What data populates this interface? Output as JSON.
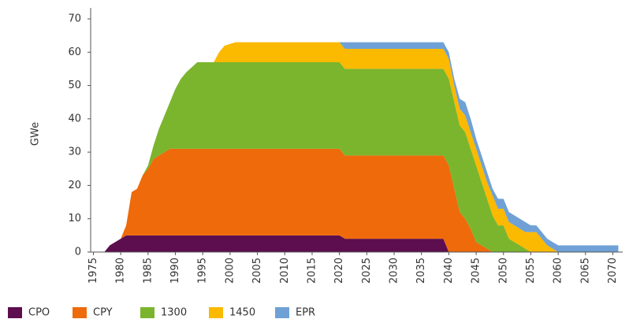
{
  "chart_data": {
    "type": "stacked_area",
    "y_label": "GWe",
    "x": [
      1977,
      1978,
      1980,
      1981,
      1982,
      1983,
      1984,
      1985,
      1986,
      1987,
      1988,
      1989,
      1990,
      1991,
      1992,
      1993,
      1994,
      1997,
      1998,
      1999,
      2001,
      2020,
      2021,
      2039,
      2040,
      2041,
      2042,
      2043,
      2044,
      2045,
      2046,
      2047,
      2048,
      2049,
      2050,
      2051,
      2052,
      2053,
      2054,
      2055,
      2056,
      2057,
      2058,
      2059,
      2060,
      2071
    ],
    "series": [
      {
        "name": "CPO",
        "color": "#5c0e4e",
        "values": [
          0,
          2,
          4,
          5,
          5,
          5,
          5,
          5,
          5,
          5,
          5,
          5,
          5,
          5,
          5,
          5,
          5,
          5,
          5,
          5,
          5,
          5,
          4,
          4,
          0,
          0,
          0,
          0,
          0,
          0,
          0,
          0,
          0,
          0,
          0,
          0,
          0,
          0,
          0,
          0,
          0,
          0,
          0,
          0,
          0,
          0
        ]
      },
      {
        "name": "CPY",
        "color": "#ee6a0b",
        "values": [
          0,
          0,
          0,
          3,
          13,
          14,
          18,
          20,
          23,
          24,
          25,
          26,
          26,
          26,
          26,
          26,
          26,
          26,
          26,
          26,
          26,
          26,
          25,
          25,
          26,
          19,
          12,
          10,
          7,
          3,
          2,
          1,
          0,
          0,
          0,
          0,
          0,
          0,
          0,
          0,
          0,
          0,
          0,
          0,
          0,
          0
        ]
      },
      {
        "name": "1300",
        "color": "#7ab52d",
        "values": [
          0,
          0,
          0,
          0,
          0,
          0,
          0,
          1,
          4,
          8,
          11,
          14,
          18,
          21,
          23,
          24.5,
          26,
          26,
          26,
          26,
          26,
          26,
          26,
          26,
          26,
          26,
          26,
          26,
          24,
          23,
          19,
          15,
          11,
          8,
          8,
          4,
          3,
          2,
          1,
          0,
          0,
          0,
          0,
          0,
          0,
          0
        ]
      },
      {
        "name": "1450",
        "color": "#fbb900",
        "values": [
          0,
          0,
          0,
          0,
          0,
          0,
          0,
          0,
          0,
          0,
          0,
          0,
          0,
          0,
          0,
          0,
          0,
          0,
          3,
          5,
          6,
          6,
          6,
          6,
          6,
          5,
          5,
          5,
          5,
          5,
          5,
          5,
          6,
          5,
          5,
          5,
          5,
          5,
          5,
          6,
          6,
          4,
          2,
          1,
          0,
          0
        ]
      },
      {
        "name": "EPR",
        "color": "#6fa1d6",
        "values": [
          0,
          0,
          0,
          0,
          0,
          0,
          0,
          0,
          0,
          0,
          0,
          0,
          0,
          0,
          0,
          0,
          0,
          0,
          0,
          0,
          0,
          0,
          2,
          2,
          2,
          2,
          3,
          4,
          4,
          3,
          3,
          3,
          2,
          3,
          3,
          3,
          3,
          3,
          3,
          2,
          2,
          2,
          2,
          2,
          2,
          2
        ]
      }
    ],
    "xlim": [
      1974.5,
      2071.8
    ],
    "xticks": [
      1975,
      1980,
      1985,
      1990,
      1995,
      2000,
      2005,
      2010,
      2015,
      2020,
      2025,
      2030,
      2035,
      2040,
      2045,
      2050,
      2055,
      2060,
      2065,
      2070
    ],
    "ylim": [
      0,
      70
    ],
    "yticks": [
      0,
      10,
      20,
      30,
      40,
      50,
      60,
      70
    ],
    "grid": false
  }
}
